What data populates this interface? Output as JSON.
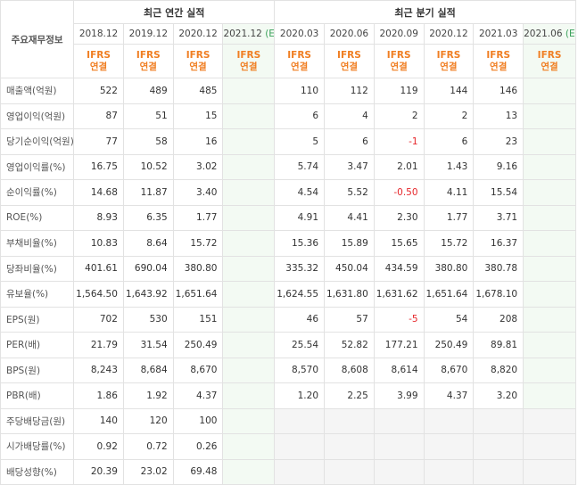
{
  "header": {
    "row_label": "주요재무정보",
    "annual_title": "최근 연간 실적",
    "quarter_title": "최근 분기 실적",
    "annual_periods": [
      "2018.12",
      "2019.12",
      "2020.12",
      "2021.12"
    ],
    "quarter_periods": [
      "2020.03",
      "2020.06",
      "2020.09",
      "2020.12",
      "2021.03",
      "2021.06"
    ],
    "estimate_tag": "(E)",
    "ifrs_line1": "IFRS",
    "ifrs_line2": "연결"
  },
  "colors": {
    "ifrs": "#f07e22",
    "estimate_tag": "#3aa05a",
    "estimate_bg": "#f3faf3",
    "negative": "#e6262a",
    "na_bg": "#f5f5f5"
  },
  "rows": [
    {
      "label": "매출액(억원)",
      "annual": [
        "522",
        "489",
        "485",
        ""
      ],
      "quarter": [
        "110",
        "112",
        "119",
        "144",
        "146",
        ""
      ]
    },
    {
      "label": "영업이익(억원)",
      "annual": [
        "87",
        "51",
        "15",
        ""
      ],
      "quarter": [
        "6",
        "4",
        "2",
        "2",
        "13",
        ""
      ]
    },
    {
      "label": "당기순이익(억원)",
      "annual": [
        "77",
        "58",
        "16",
        ""
      ],
      "quarter": [
        "5",
        "6",
        "-1",
        "6",
        "23",
        ""
      ]
    },
    {
      "label": "영업이익률(%)",
      "annual": [
        "16.75",
        "10.52",
        "3.02",
        ""
      ],
      "quarter": [
        "5.74",
        "3.47",
        "2.01",
        "1.43",
        "9.16",
        ""
      ]
    },
    {
      "label": "순이익률(%)",
      "annual": [
        "14.68",
        "11.87",
        "3.40",
        ""
      ],
      "quarter": [
        "4.54",
        "5.52",
        "-0.50",
        "4.11",
        "15.54",
        ""
      ]
    },
    {
      "label": "ROE(%)",
      "annual": [
        "8.93",
        "6.35",
        "1.77",
        ""
      ],
      "quarter": [
        "4.91",
        "4.41",
        "2.30",
        "1.77",
        "3.71",
        ""
      ]
    },
    {
      "label": "부채비율(%)",
      "annual": [
        "10.83",
        "8.64",
        "15.72",
        ""
      ],
      "quarter": [
        "15.36",
        "15.89",
        "15.65",
        "15.72",
        "16.37",
        ""
      ]
    },
    {
      "label": "당좌비율(%)",
      "annual": [
        "401.61",
        "690.04",
        "380.80",
        ""
      ],
      "quarter": [
        "335.32",
        "450.04",
        "434.59",
        "380.80",
        "380.78",
        ""
      ]
    },
    {
      "label": "유보율(%)",
      "annual": [
        "1,564.50",
        "1,643.92",
        "1,651.64",
        ""
      ],
      "quarter": [
        "1,624.55",
        "1,631.80",
        "1,631.62",
        "1,651.64",
        "1,678.10",
        ""
      ]
    },
    {
      "label": "EPS(원)",
      "annual": [
        "702",
        "530",
        "151",
        ""
      ],
      "quarter": [
        "46",
        "57",
        "-5",
        "54",
        "208",
        ""
      ]
    },
    {
      "label": "PER(배)",
      "annual": [
        "21.79",
        "31.54",
        "250.49",
        ""
      ],
      "quarter": [
        "25.54",
        "52.82",
        "177.21",
        "250.49",
        "89.81",
        ""
      ]
    },
    {
      "label": "BPS(원)",
      "annual": [
        "8,243",
        "8,684",
        "8,670",
        ""
      ],
      "quarter": [
        "8,570",
        "8,608",
        "8,614",
        "8,670",
        "8,820",
        ""
      ]
    },
    {
      "label": "PBR(배)",
      "annual": [
        "1.86",
        "1.92",
        "4.37",
        ""
      ],
      "quarter": [
        "1.20",
        "2.25",
        "3.99",
        "4.37",
        "3.20",
        ""
      ]
    },
    {
      "label": "주당배당금(원)",
      "annual": [
        "140",
        "120",
        "100",
        ""
      ],
      "quarter": [
        "",
        "",
        "",
        "",
        "",
        ""
      ]
    },
    {
      "label": "시가배당률(%)",
      "annual": [
        "0.92",
        "0.72",
        "0.26",
        ""
      ],
      "quarter": [
        "",
        "",
        "",
        "",
        "",
        ""
      ]
    },
    {
      "label": "배당성향(%)",
      "annual": [
        "20.39",
        "23.02",
        "69.48",
        ""
      ],
      "quarter": [
        "",
        "",
        "",
        "",
        "",
        ""
      ]
    }
  ]
}
